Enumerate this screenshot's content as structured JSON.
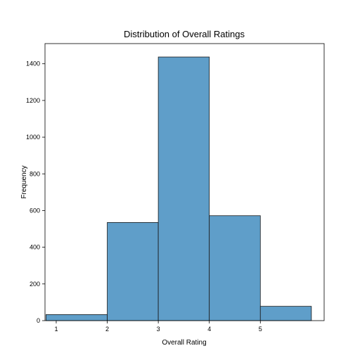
{
  "chart_data": {
    "type": "bar",
    "title": "Distribution of Overall Ratings",
    "xlabel": "Overall Rating",
    "ylabel": "Frequency",
    "bins": [
      {
        "start": 0.8,
        "end": 2.0,
        "value": 33
      },
      {
        "start": 2.0,
        "end": 3.0,
        "value": 535
      },
      {
        "start": 3.0,
        "end": 4.0,
        "value": 1437
      },
      {
        "start": 4.0,
        "end": 5.0,
        "value": 572
      },
      {
        "start": 5.0,
        "end": 6.0,
        "value": 78
      }
    ],
    "xticks": [
      1,
      2,
      3,
      4,
      5
    ],
    "yticks": [
      0,
      200,
      400,
      600,
      800,
      1000,
      1200,
      1400
    ],
    "xlim": [
      0.78,
      6.25
    ],
    "ylim": [
      0,
      1510
    ],
    "bar_color": "#5f9ec9",
    "grid": false
  }
}
